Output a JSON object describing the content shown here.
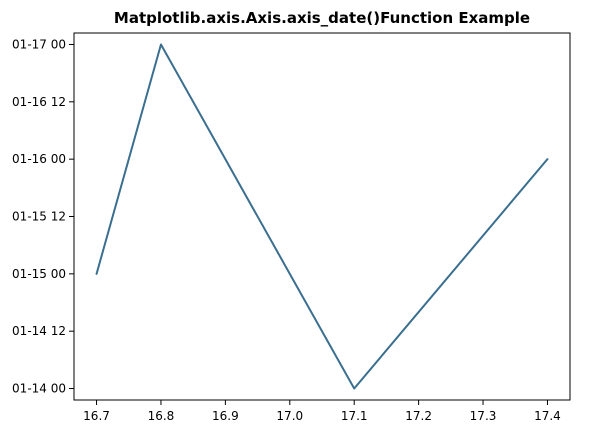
{
  "chart_data": {
    "type": "line",
    "title": "Matplotlib.axis.Axis.axis_date()Function Example",
    "xlabel": "",
    "ylabel": "",
    "x": [
      16.7,
      16.8,
      17.0,
      17.1,
      17.4
    ],
    "series": [
      {
        "values": [
          "2000-01-15 00:00",
          "2000-01-17 00:00",
          "2000-01-15 00:00",
          "2000-01-14 00:00",
          "2000-01-16 00:00"
        ],
        "color": "#3a6f8f"
      }
    ],
    "xlim": [
      16.665,
      17.435
    ],
    "ylim": [
      "2000-01-13 21:36",
      "2000-01-17 02:24"
    ],
    "x_ticks": [
      16.7,
      16.8,
      16.9,
      17.0,
      17.1,
      17.2,
      17.3,
      17.4
    ],
    "x_tick_labels": [
      "16.7",
      "16.8",
      "16.9",
      "17.0",
      "17.1",
      "17.2",
      "17.3",
      "17.4"
    ],
    "y_ticks": [
      "2000-01-14 00:00",
      "2000-01-14 12:00",
      "2000-01-15 00:00",
      "2000-01-15 12:00",
      "2000-01-16 00:00",
      "2000-01-16 12:00",
      "2000-01-17 00:00"
    ],
    "y_tick_labels": [
      "01-14 00",
      "01-14 12",
      "01-15 00",
      "01-15 12",
      "01-16 00",
      "01-16 12",
      "01-17 00"
    ],
    "y_axis_type": "date",
    "grid": false,
    "legend": "none"
  }
}
